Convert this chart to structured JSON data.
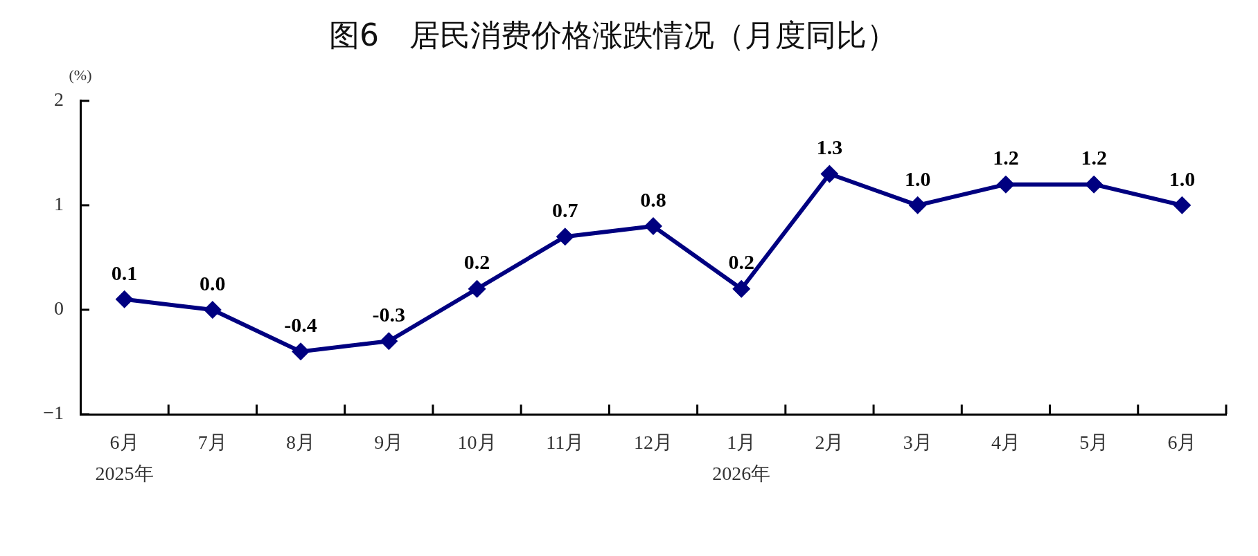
{
  "chart_data": {
    "type": "line",
    "title": "图6　居民消费价格涨跌情况（月度同比）",
    "ylabel": "(%)",
    "categories": [
      "6月\n2025年",
      "7月",
      "8月",
      "9月",
      "10月",
      "11月",
      "12月",
      "1月\n2026年",
      "2月",
      "3月",
      "4月",
      "5月",
      "6月"
    ],
    "series": [
      {
        "color": "#000080",
        "values": [
          0.1,
          0.0,
          -0.4,
          -0.3,
          0.2,
          0.7,
          0.8,
          0.2,
          1.3,
          1.0,
          1.2,
          1.2,
          1.0
        ],
        "value_labels": [
          "0.1",
          "0.0",
          "-0.4",
          "-0.3",
          "0.2",
          "0.7",
          "0.8",
          "0.2",
          "1.3",
          "1.0",
          "1.2",
          "1.2",
          "1.0"
        ]
      }
    ],
    "ylim": [
      -1,
      2
    ],
    "yticks": [
      {
        "value": -1,
        "label": "−1"
      },
      0,
      1,
      2
    ],
    "grid": false,
    "legend": false,
    "marker": "diamond",
    "line_style": "solid"
  }
}
